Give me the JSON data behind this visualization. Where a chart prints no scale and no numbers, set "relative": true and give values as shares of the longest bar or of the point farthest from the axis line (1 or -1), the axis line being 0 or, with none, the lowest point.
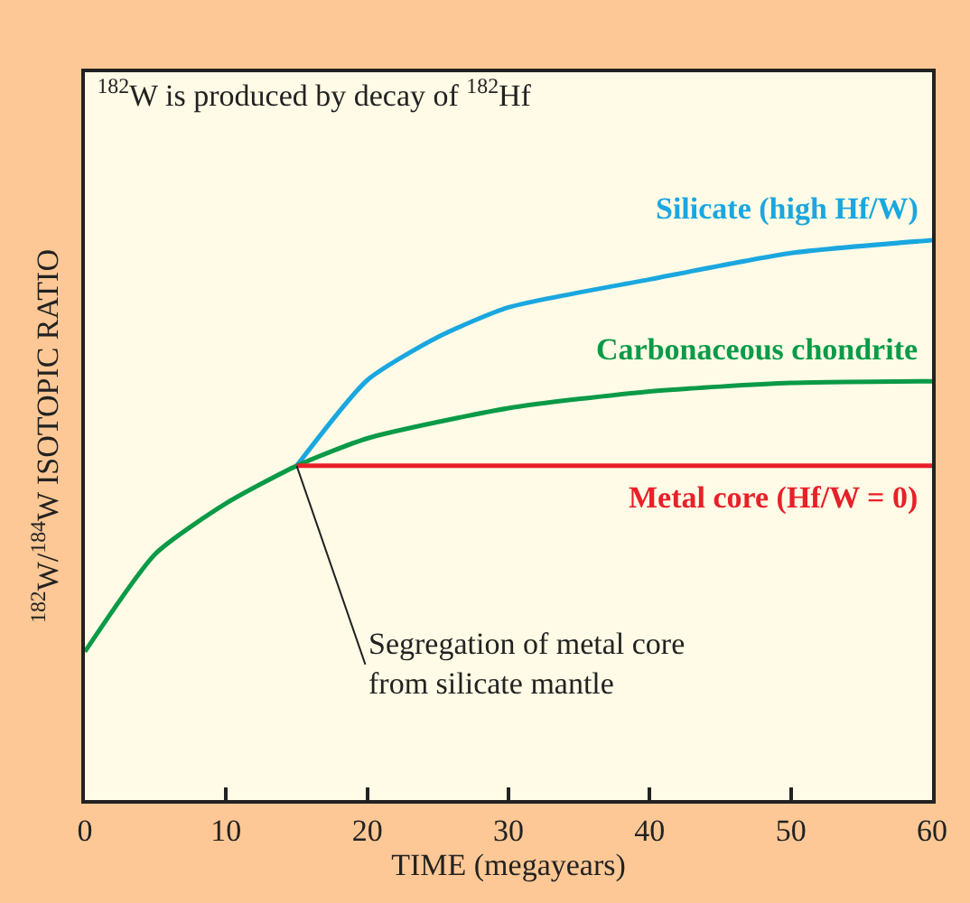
{
  "chart_data": {
    "type": "line",
    "title": "$^{182}$W is produced by decay of $^{182}$Hf",
    "xlabel": "TIME (megayears)",
    "ylabel": "$^{182}$W/$^{184}$W ISOTOPIC RATIO",
    "relative": true,
    "xlim": [
      0,
      60
    ],
    "xticks": [
      0,
      10,
      20,
      30,
      40,
      50,
      60
    ],
    "legend": false,
    "grid": false,
    "marker": "none",
    "line_style": "solid",
    "series": [
      {
        "name": "Silicate (high Hf/W)",
        "color": "#1aa7e0",
        "x": [
          15,
          20,
          25,
          30,
          40,
          50,
          60
        ],
        "values": [
          0.597,
          0.75,
          0.827,
          0.88,
          0.93,
          0.977,
          1.0
        ]
      },
      {
        "name": "Carbonaceous chondrite",
        "color": "#0a9a48",
        "x": [
          0,
          5,
          10,
          15,
          20,
          30,
          40,
          50,
          60
        ],
        "values": [
          0.265,
          0.44,
          0.53,
          0.597,
          0.646,
          0.7,
          0.73,
          0.745,
          0.748
        ]
      },
      {
        "name": "Metal core (Hf/W = 0)",
        "color": "#e8202a",
        "x": [
          15,
          60
        ],
        "values": [
          0.597,
          0.597
        ]
      }
    ],
    "annotations": [
      {
        "text": "Segregation of metal core\nfrom silicate mantle",
        "x": 15,
        "y": 0.597
      }
    ]
  }
}
